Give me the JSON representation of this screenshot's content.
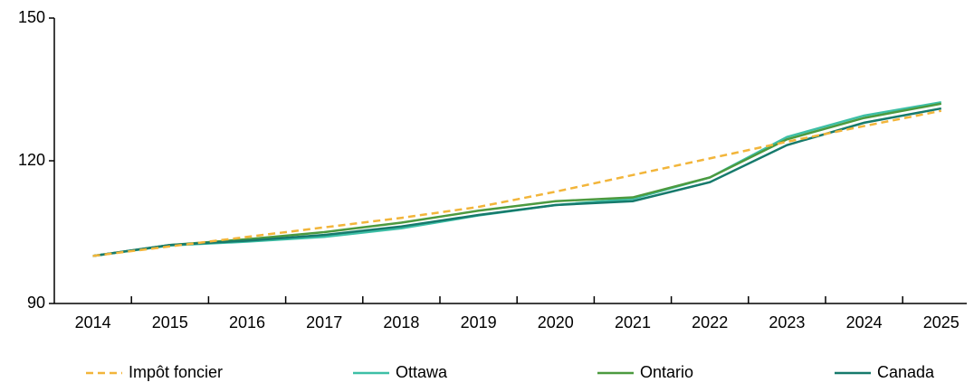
{
  "chart_data": {
    "type": "line",
    "categories": [
      "2014",
      "2015",
      "2016",
      "2017",
      "2018",
      "2019",
      "2020",
      "2021",
      "2022",
      "2023",
      "2024",
      "2025"
    ],
    "series": [
      {
        "name": "Impôt foncier",
        "color": "#f2b53a",
        "dashed": true,
        "values": [
          100,
          102,
          104,
          106,
          108,
          110.3,
          113.5,
          117,
          120.5,
          124,
          127.3,
          130.5
        ]
      },
      {
        "name": "Ottawa",
        "color": "#3dbfa6",
        "values": [
          100,
          102.2,
          103,
          104,
          105.8,
          108.5,
          110.7,
          112,
          116.5,
          125,
          129.5,
          132.3
        ]
      },
      {
        "name": "Ontario",
        "color": "#4c9a3f",
        "values": [
          100,
          102.3,
          103.5,
          105,
          107,
          109.5,
          111.5,
          112.3,
          116.5,
          124.5,
          129,
          132
        ]
      },
      {
        "name": "Canada",
        "color": "#167a6c",
        "values": [
          100,
          102.3,
          103.2,
          104.4,
          106.2,
          108.6,
          110.7,
          111.5,
          115.5,
          123.3,
          128,
          131
        ]
      }
    ],
    "ylim": [
      90,
      150
    ],
    "yticks": [
      90,
      120,
      150
    ],
    "grid": false
  }
}
